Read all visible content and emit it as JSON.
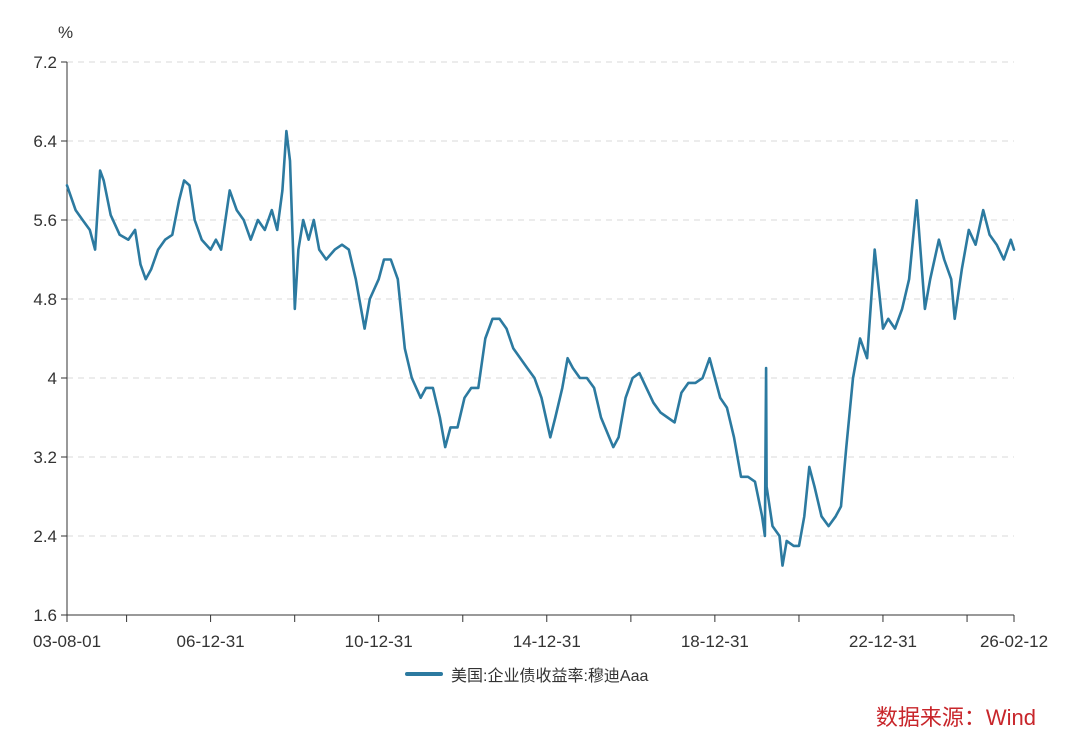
{
  "chart_data": {
    "type": "line",
    "unit_label": "%",
    "ylim": [
      1.6,
      7.2
    ],
    "yticks": [
      "1.6",
      "2.4",
      "3.2",
      "4",
      "4.8",
      "5.6",
      "6.4",
      "7.2"
    ],
    "ytick_values": [
      1.6,
      2.4,
      3.2,
      4.0,
      4.8,
      5.6,
      6.4,
      7.2
    ],
    "x_range": [
      "2003-08-01",
      "2026-02-12"
    ],
    "xtick_labels": [
      {
        "label": "03-08-01",
        "date": "2003-08-01"
      },
      {
        "label": "06-12-31",
        "date": "2006-12-31"
      },
      {
        "label": "10-12-31",
        "date": "2010-12-31"
      },
      {
        "label": "14-12-31",
        "date": "2014-12-31"
      },
      {
        "label": "18-12-31",
        "date": "2018-12-31"
      },
      {
        "label": "22-12-31",
        "date": "2022-12-31"
      },
      {
        "label": "26-02-12",
        "date": "2026-02-12"
      }
    ],
    "x_minor_ticks": [
      "2004-12-31",
      "2008-12-31",
      "2012-12-31",
      "2016-12-31",
      "2020-12-31",
      "2024-12-31"
    ],
    "grid": "horizontal dashed",
    "series": [
      {
        "name": "美国:企业债收益率:穆迪Aaa",
        "color": "#2c7aa0",
        "points": [
          [
            "2003-08-01",
            5.95
          ],
          [
            "2003-10-15",
            5.7
          ],
          [
            "2003-12-15",
            5.6
          ],
          [
            "2004-02-15",
            5.5
          ],
          [
            "2004-04-01",
            5.3
          ],
          [
            "2004-05-15",
            6.1
          ],
          [
            "2004-06-15",
            6.0
          ],
          [
            "2004-08-15",
            5.65
          ],
          [
            "2004-11-01",
            5.45
          ],
          [
            "2005-01-15",
            5.4
          ],
          [
            "2005-03-15",
            5.5
          ],
          [
            "2005-05-01",
            5.15
          ],
          [
            "2005-06-15",
            5.0
          ],
          [
            "2005-08-01",
            5.1
          ],
          [
            "2005-10-01",
            5.3
          ],
          [
            "2005-12-01",
            5.4
          ],
          [
            "2006-02-01",
            5.45
          ],
          [
            "2006-04-01",
            5.8
          ],
          [
            "2006-05-15",
            6.0
          ],
          [
            "2006-07-01",
            5.95
          ],
          [
            "2006-08-15",
            5.6
          ],
          [
            "2006-10-15",
            5.4
          ],
          [
            "2006-12-31",
            5.3
          ],
          [
            "2007-02-15",
            5.4
          ],
          [
            "2007-04-01",
            5.3
          ],
          [
            "2007-06-15",
            5.9
          ],
          [
            "2007-08-15",
            5.7
          ],
          [
            "2007-10-15",
            5.6
          ],
          [
            "2007-12-15",
            5.4
          ],
          [
            "2008-02-15",
            5.6
          ],
          [
            "2008-04-15",
            5.5
          ],
          [
            "2008-06-15",
            5.7
          ],
          [
            "2008-08-01",
            5.5
          ],
          [
            "2008-09-15",
            5.9
          ],
          [
            "2008-10-20",
            6.5
          ],
          [
            "2008-11-20",
            6.2
          ],
          [
            "2008-12-20",
            5.2
          ],
          [
            "2009-01-01",
            4.7
          ],
          [
            "2009-02-01",
            5.3
          ],
          [
            "2009-03-15",
            5.6
          ],
          [
            "2009-05-01",
            5.4
          ],
          [
            "2009-06-15",
            5.6
          ],
          [
            "2009-08-01",
            5.3
          ],
          [
            "2009-10-01",
            5.2
          ],
          [
            "2009-12-15",
            5.3
          ],
          [
            "2010-02-15",
            5.35
          ],
          [
            "2010-04-15",
            5.3
          ],
          [
            "2010-06-15",
            5.0
          ],
          [
            "2010-08-31",
            4.5
          ],
          [
            "2010-10-15",
            4.8
          ],
          [
            "2010-12-31",
            5.0
          ],
          [
            "2011-02-15",
            5.2
          ],
          [
            "2011-04-15",
            5.2
          ],
          [
            "2011-06-15",
            5.0
          ],
          [
            "2011-08-15",
            4.3
          ],
          [
            "2011-10-15",
            4.0
          ],
          [
            "2011-12-31",
            3.8
          ],
          [
            "2012-02-15",
            3.9
          ],
          [
            "2012-04-15",
            3.9
          ],
          [
            "2012-06-15",
            3.6
          ],
          [
            "2012-07-31",
            3.3
          ],
          [
            "2012-09-15",
            3.5
          ],
          [
            "2012-11-15",
            3.5
          ],
          [
            "2013-01-15",
            3.8
          ],
          [
            "2013-03-15",
            3.9
          ],
          [
            "2013-05-15",
            3.9
          ],
          [
            "2013-07-15",
            4.4
          ],
          [
            "2013-09-15",
            4.6
          ],
          [
            "2013-11-15",
            4.6
          ],
          [
            "2014-01-15",
            4.5
          ],
          [
            "2014-03-15",
            4.3
          ],
          [
            "2014-05-15",
            4.2
          ],
          [
            "2014-07-15",
            4.1
          ],
          [
            "2014-09-15",
            4.0
          ],
          [
            "2014-11-15",
            3.8
          ],
          [
            "2015-01-31",
            3.4
          ],
          [
            "2015-03-15",
            3.6
          ],
          [
            "2015-05-15",
            3.9
          ],
          [
            "2015-06-30",
            4.2
          ],
          [
            "2015-08-15",
            4.1
          ],
          [
            "2015-10-15",
            4.0
          ],
          [
            "2015-12-15",
            4.0
          ],
          [
            "2016-02-15",
            3.9
          ],
          [
            "2016-04-15",
            3.6
          ],
          [
            "2016-07-31",
            3.3
          ],
          [
            "2016-09-15",
            3.4
          ],
          [
            "2016-11-15",
            3.8
          ],
          [
            "2017-01-15",
            4.0
          ],
          [
            "2017-03-15",
            4.05
          ],
          [
            "2017-05-15",
            3.9
          ],
          [
            "2017-07-15",
            3.75
          ],
          [
            "2017-09-15",
            3.65
          ],
          [
            "2017-11-15",
            3.6
          ],
          [
            "2018-01-15",
            3.55
          ],
          [
            "2018-03-15",
            3.85
          ],
          [
            "2018-05-15",
            3.95
          ],
          [
            "2018-07-15",
            3.95
          ],
          [
            "2018-09-15",
            4.0
          ],
          [
            "2018-11-15",
            4.2
          ],
          [
            "2018-12-31",
            4.0
          ],
          [
            "2019-02-15",
            3.8
          ],
          [
            "2019-04-15",
            3.7
          ],
          [
            "2019-06-15",
            3.4
          ],
          [
            "2019-08-15",
            3.0
          ],
          [
            "2019-10-15",
            3.0
          ],
          [
            "2019-12-15",
            2.95
          ],
          [
            "2020-02-15",
            2.6
          ],
          [
            "2020-03-10",
            2.4
          ],
          [
            "2020-03-20",
            4.1
          ],
          [
            "2020-03-25",
            2.9
          ],
          [
            "2020-05-15",
            2.5
          ],
          [
            "2020-07-15",
            2.4
          ],
          [
            "2020-08-10",
            2.1
          ],
          [
            "2020-09-15",
            2.35
          ],
          [
            "2020-11-15",
            2.3
          ],
          [
            "2020-12-31",
            2.3
          ],
          [
            "2021-02-15",
            2.6
          ],
          [
            "2021-03-31",
            3.1
          ],
          [
            "2021-05-15",
            2.9
          ],
          [
            "2021-07-15",
            2.6
          ],
          [
            "2021-09-15",
            2.5
          ],
          [
            "2021-11-15",
            2.6
          ],
          [
            "2021-12-31",
            2.7
          ],
          [
            "2022-02-15",
            3.3
          ],
          [
            "2022-04-15",
            4.0
          ],
          [
            "2022-06-15",
            4.4
          ],
          [
            "2022-08-15",
            4.2
          ],
          [
            "2022-10-20",
            5.3
          ],
          [
            "2022-12-31",
            4.5
          ],
          [
            "2023-02-15",
            4.6
          ],
          [
            "2023-04-15",
            4.5
          ],
          [
            "2023-06-15",
            4.7
          ],
          [
            "2023-08-15",
            5.0
          ],
          [
            "2023-10-20",
            5.8
          ],
          [
            "2023-12-31",
            4.7
          ],
          [
            "2024-02-15",
            5.0
          ],
          [
            "2024-04-30",
            5.4
          ],
          [
            "2024-06-15",
            5.2
          ],
          [
            "2024-08-15",
            5.0
          ],
          [
            "2024-09-15",
            4.6
          ],
          [
            "2024-11-15",
            5.1
          ],
          [
            "2025-01-15",
            5.5
          ],
          [
            "2025-03-15",
            5.35
          ],
          [
            "2025-05-20",
            5.7
          ],
          [
            "2025-07-15",
            5.45
          ],
          [
            "2025-09-15",
            5.35
          ],
          [
            "2025-11-15",
            5.2
          ],
          [
            "2026-01-15",
            5.4
          ],
          [
            "2026-02-12",
            5.3
          ]
        ]
      }
    ]
  },
  "legend": {
    "label": "美国:企业债收益率:穆迪Aaa",
    "color": "#2c7aa0"
  },
  "source": {
    "text": "数据来源：Wind",
    "color": "#c8262b"
  }
}
